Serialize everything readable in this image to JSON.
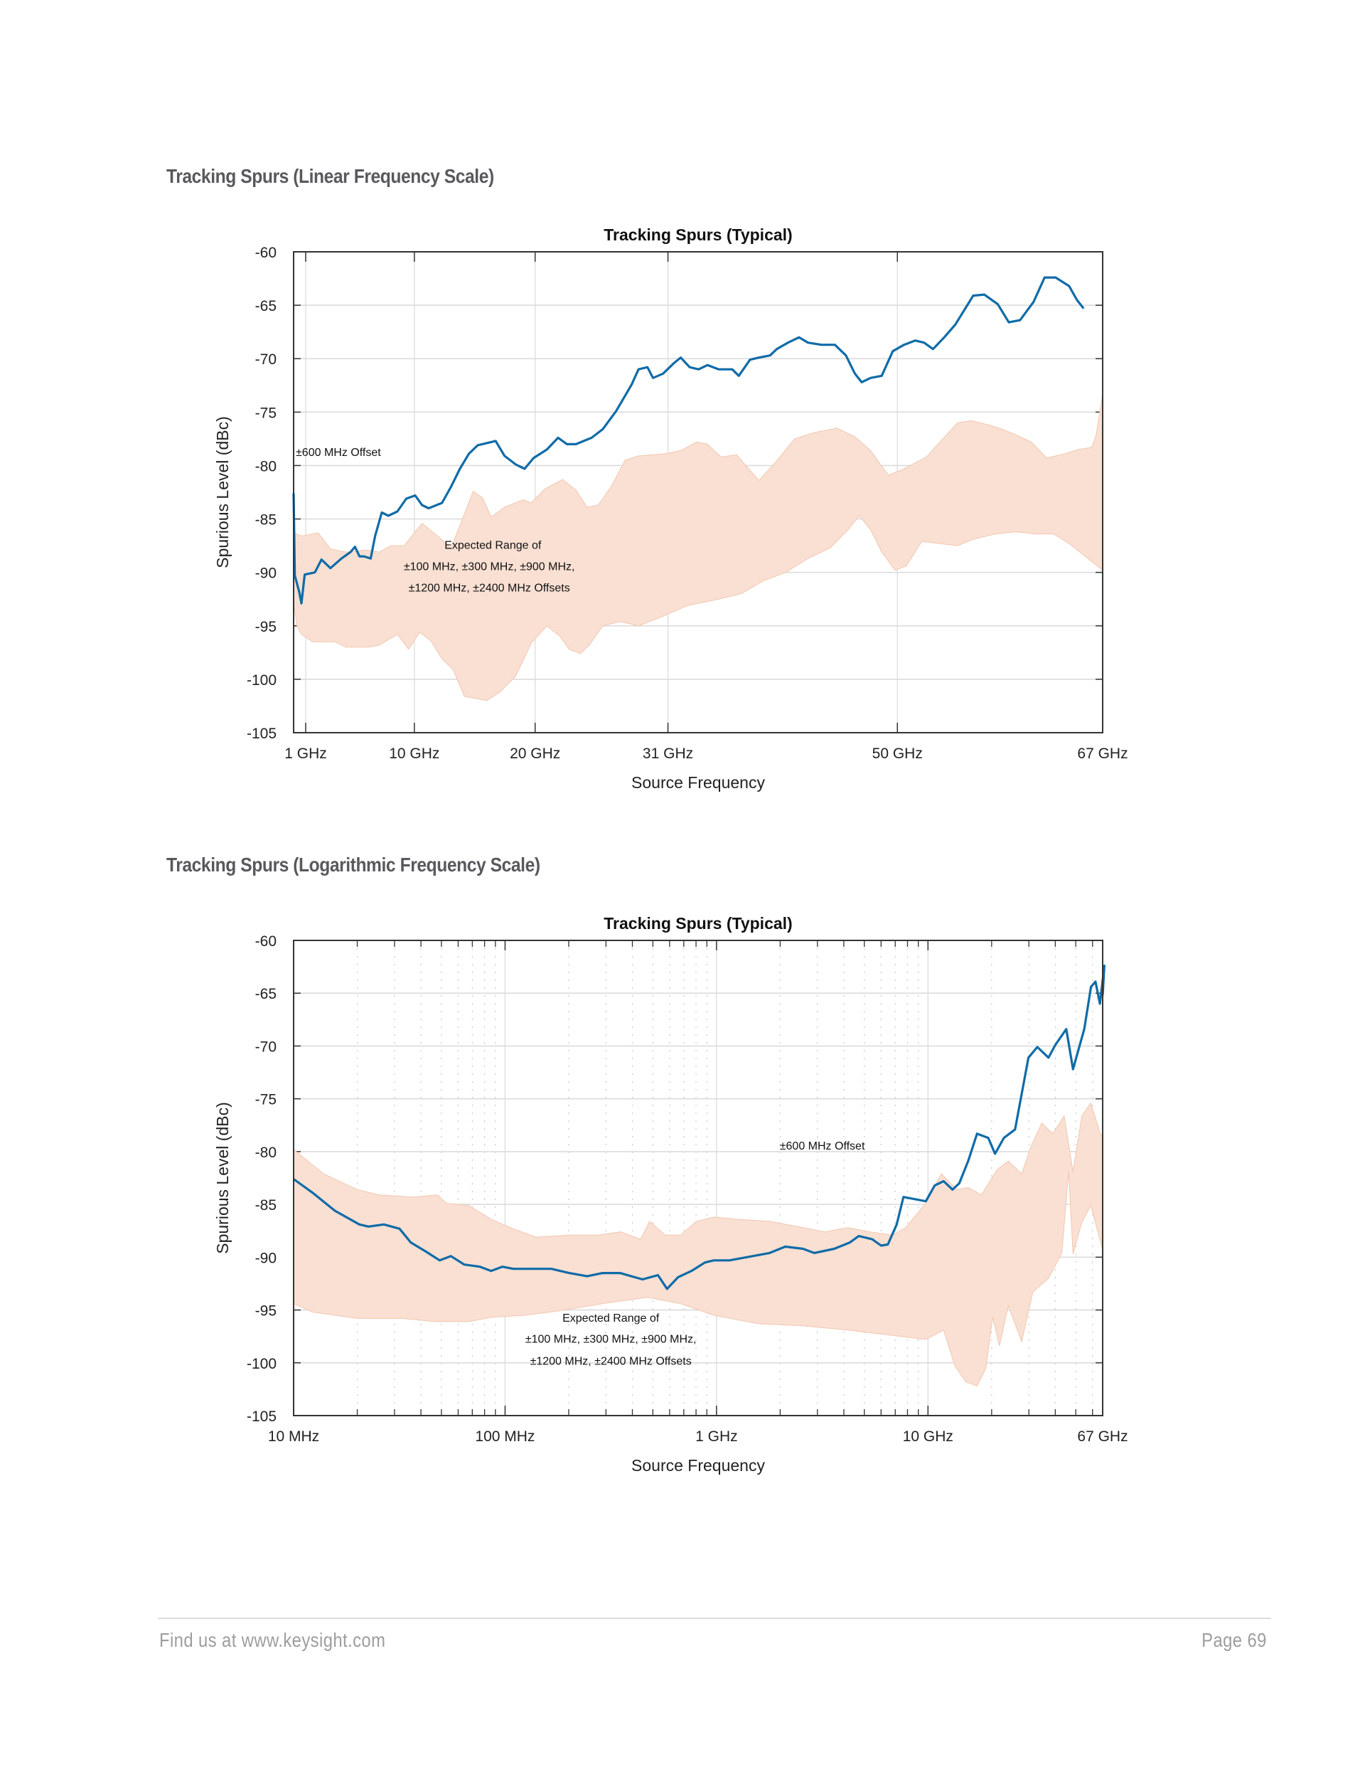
{
  "sections": [
    {
      "heading": "Tracking Spurs (Linear Frequency Scale)"
    },
    {
      "heading": "Tracking Spurs (Logarithmic Frequency Scale)"
    }
  ],
  "footer": {
    "left": "Find us at www.keysight.com",
    "right": "Page 69"
  },
  "colors": {
    "line": "#0f6ba8",
    "band": "#f9e0d3",
    "band_edge": "#f2c7b0",
    "grid": "#dcdcdc",
    "axis": "#333333"
  },
  "chart_data": [
    {
      "type": "line",
      "title": "Tracking Spurs (Typical)",
      "xlabel": "Source Frequency",
      "ylabel": "Spurious Level (dBc)",
      "xscale": "linear",
      "xlim": [
        0,
        67
      ],
      "ylim": [
        -105,
        -60
      ],
      "grid": true,
      "xticks": [
        1,
        10,
        20,
        31,
        50,
        67
      ],
      "xtick_labels": [
        "1 GHz",
        "10 GHz",
        "20 GHz",
        "31 GHz",
        "50 GHz",
        "67 GHz"
      ],
      "yticks": [
        -60,
        -65,
        -70,
        -75,
        -80,
        -85,
        -90,
        -95,
        -100,
        -105
      ],
      "ytick_labels": [
        "-60",
        "-65",
        "-70",
        "-75",
        "-80",
        "-85",
        "-90",
        "-95",
        "-100",
        "-105"
      ],
      "annotations": [
        {
          "text": "±600 MHz Offset",
          "x": 3.7,
          "y": -79.1
        },
        {
          "text": "Expected Range of",
          "x": 16.5,
          "y": -87.8
        },
        {
          "text": "±100 MHz, ±300 MHz, ±900 MHz,",
          "x": 16.2,
          "y": -89.8
        },
        {
          "text": "±1200 MHz, ±2400 MHz Offsets",
          "x": 16.2,
          "y": -91.8
        }
      ],
      "series": [
        {
          "name": "±600 MHz Offset",
          "kind": "line",
          "x": [
            0,
            0.1,
            0.46,
            0.65,
            0.92,
            1.76,
            2.31,
            3.05,
            3.97,
            4.71,
            5.08,
            5.45,
            5.82,
            6.38,
            6.75,
            7.3,
            7.85,
            8.59,
            9.33,
            10.07,
            10.63,
            11.18,
            12.29,
            13.03,
            13.77,
            14.51,
            15.25,
            16.73,
            17.47,
            18.39,
            19.13,
            19.87,
            20.98,
            21.9,
            22.64,
            23.38,
            24.68,
            25.6,
            26.71,
            28.0,
            28.56,
            29.3,
            29.76,
            30.59,
            31.51,
            32.06,
            32.8,
            33.54,
            34.28,
            35.21,
            36.32,
            36.87,
            37.79,
            38.53,
            39.46,
            40.01,
            40.94,
            41.86,
            42.6,
            43.71,
            44.82,
            45.74,
            46.48,
            47.04,
            47.78,
            48.7,
            49.62,
            50.55,
            51.47,
            52.21,
            52.95,
            53.88,
            54.8,
            56.28,
            57.2,
            58.31,
            59.23,
            60.16,
            61.27,
            62.19,
            63.11,
            64.22,
            64.87,
            65.42
          ],
          "y": [
            -82.6,
            -90.3,
            -91.8,
            -92.9,
            -90.2,
            -90.0,
            -88.8,
            -89.6,
            -88.7,
            -88.1,
            -87.6,
            -88.5,
            -88.5,
            -88.7,
            -86.6,
            -84.4,
            -84.7,
            -84.3,
            -83.1,
            -82.8,
            -83.7,
            -84.0,
            -83.5,
            -82.0,
            -80.3,
            -78.9,
            -78.1,
            -77.7,
            -79.1,
            -79.9,
            -80.3,
            -79.3,
            -78.5,
            -77.4,
            -78.0,
            -78.0,
            -77.4,
            -76.6,
            -74.9,
            -72.4,
            -71.0,
            -70.8,
            -71.8,
            -71.4,
            -70.4,
            -69.9,
            -70.8,
            -71.0,
            -70.6,
            -71.0,
            -71.0,
            -71.6,
            -70.1,
            -69.9,
            -69.7,
            -69.1,
            -68.5,
            -68.0,
            -68.5,
            -68.7,
            -68.7,
            -69.7,
            -71.4,
            -72.2,
            -71.8,
            -71.6,
            -69.3,
            -68.7,
            -68.3,
            -68.5,
            -69.1,
            -68.0,
            -66.8,
            -64.1,
            -64.0,
            -64.9,
            -66.6,
            -66.4,
            -64.7,
            -62.4,
            -62.4,
            -63.2,
            -64.5,
            -65.3
          ]
        },
        {
          "name": "Expected Range of ±100 MHz, ±300 MHz, ±900 MHz, ±1200 MHz, ±2400 MHz Offsets",
          "kind": "band",
          "upper": {
            "x": [
              0,
              0.65,
              2.03,
              3.05,
              4.34,
              6.01,
              7.12,
              8.04,
              9.15,
              10.63,
              11.92,
              13.03,
              13.77,
              14.88,
              15.62,
              16.36,
              17.47,
              19.0,
              19.69,
              20.79,
              22.27,
              23.38,
              24.3,
              25.23,
              26.34,
              27.45,
              28.56,
              30.77,
              32.06,
              33.36,
              34.28,
              35.39,
              36.69,
              38.53,
              39.83,
              41.49,
              43.16,
              45.0,
              46.48,
              47.78,
              49.25,
              50.55,
              52.4,
              53.51,
              54.99,
              56.1,
              57.58,
              58.68,
              59.79,
              61.09,
              62.38,
              63.86,
              64.97,
              66.08,
              66.45,
              67.0
            ],
            "y": [
              -86.3,
              -86.6,
              -86.3,
              -87.8,
              -88.1,
              -87.9,
              -88.1,
              -87.5,
              -87.5,
              -85.4,
              -86.6,
              -87.7,
              -85.6,
              -82.4,
              -83.0,
              -84.8,
              -83.9,
              -83.2,
              -83.5,
              -82.2,
              -81.3,
              -82.3,
              -83.9,
              -83.7,
              -81.9,
              -79.5,
              -79.1,
              -78.9,
              -78.6,
              -77.8,
              -78.0,
              -79.2,
              -79.0,
              -81.4,
              -79.8,
              -77.5,
              -76.9,
              -76.5,
              -77.3,
              -78.6,
              -80.9,
              -80.3,
              -79.2,
              -77.8,
              -76.0,
              -75.8,
              -76.2,
              -76.6,
              -77.1,
              -77.8,
              -79.3,
              -78.9,
              -78.5,
              -78.3,
              -77.2,
              -73.3
            ]
          },
          "lower": {
            "x": [
              0,
              0.28,
              0.65,
              1.57,
              3.42,
              4.34,
              6.19,
              7.12,
              8.59,
              9.52,
              10.44,
              11.36,
              12.29,
              13.21,
              14.14,
              15.99,
              17.1,
              18.39,
              19.69,
              20.98,
              22.08,
              22.82,
              23.75,
              24.49,
              25.6,
              27.08,
              28.56,
              30.59,
              32.62,
              35.21,
              37.05,
              38.9,
              40.75,
              42.6,
              44.45,
              45.92,
              46.85,
              47.78,
              48.7,
              49.81,
              50.73,
              52.03,
              53.51,
              54.99,
              56.28,
              58.13,
              59.79,
              61.46,
              62.93,
              64.22,
              67.0
            ],
            "y": [
              -92.9,
              -95.0,
              -95.8,
              -96.5,
              -96.5,
              -97.0,
              -97.0,
              -96.8,
              -95.8,
              -97.2,
              -95.6,
              -96.4,
              -98.1,
              -99.1,
              -101.6,
              -102.0,
              -101.2,
              -99.7,
              -96.6,
              -95.0,
              -96.0,
              -97.2,
              -97.6,
              -96.8,
              -95.0,
              -94.6,
              -95.0,
              -94.1,
              -93.1,
              -92.5,
              -92.0,
              -90.8,
              -90.0,
              -88.7,
              -87.7,
              -86.0,
              -84.7,
              -86.0,
              -88.1,
              -89.8,
              -89.4,
              -87.1,
              -87.3,
              -87.5,
              -86.9,
              -86.4,
              -86.2,
              -86.4,
              -86.4,
              -87.3,
              -89.8
            ]
          }
        }
      ]
    },
    {
      "type": "line",
      "title": "Tracking Spurs (Typical)",
      "xlabel": "Source Frequency",
      "ylabel": "Spurious Level (dBc)",
      "xscale": "log",
      "xlim_hz": [
        10000000,
        67000000000
      ],
      "ylim": [
        -105,
        -60
      ],
      "grid": true,
      "minor_grid": true,
      "xticks_hz": [
        10000000,
        100000000,
        1000000000,
        10000000000,
        67000000000
      ],
      "xtick_labels": [
        "10 MHz",
        "100 MHz",
        "1 GHz",
        "10 GHz",
        "67 GHz"
      ],
      "yticks": [
        -60,
        -65,
        -70,
        -75,
        -80,
        -85,
        -90,
        -95,
        -100,
        -105
      ],
      "ytick_labels": [
        "-60",
        "-65",
        "-70",
        "-75",
        "-80",
        "-85",
        "-90",
        "-95",
        "-100",
        "-105"
      ],
      "annotations": [
        {
          "text": "±600 MHz Offset",
          "log10_x": 9.5,
          "y": -79.8
        },
        {
          "text": "Expected Range of",
          "log10_x": 8.5,
          "y": -96.1
        },
        {
          "text": "±100 MHz, ±300 MHz, ±900 MHz,",
          "log10_x": 8.5,
          "y": -98.1
        },
        {
          "text": "±1200 MHz, ±2400 MHz Offsets",
          "log10_x": 8.5,
          "y": -100.2
        }
      ],
      "series": [
        {
          "name": "±600 MHz Offset",
          "kind": "line",
          "log10_x": [
            7.0,
            7.09,
            7.195,
            7.311,
            7.354,
            7.427,
            7.501,
            7.554,
            7.628,
            7.691,
            7.744,
            7.807,
            7.881,
            7.934,
            7.987,
            8.039,
            8.124,
            8.219,
            8.303,
            8.388,
            8.462,
            8.544,
            8.597,
            8.65,
            8.723,
            8.766,
            8.818,
            8.882,
            8.945,
            8.987,
            9.061,
            9.251,
            9.325,
            9.409,
            9.462,
            9.557,
            9.631,
            9.673,
            9.736,
            9.778,
            9.81,
            9.852,
            9.884,
            9.937,
            9.99,
            10.032,
            10.074,
            10.116,
            10.148,
            10.19,
            10.232,
            10.285,
            10.317,
            10.359,
            10.412,
            10.475,
            10.517,
            10.57,
            10.602,
            10.654,
            10.686,
            10.739,
            10.771,
            10.792,
            10.813,
            10.834,
            10.826
          ],
          "y": [
            -82.6,
            -83.9,
            -85.6,
            -86.9,
            -87.1,
            -86.9,
            -87.3,
            -88.6,
            -89.5,
            -90.3,
            -89.9,
            -90.7,
            -90.9,
            -91.3,
            -90.9,
            -91.1,
            -91.1,
            -91.1,
            -91.5,
            -91.8,
            -91.5,
            -91.5,
            -91.8,
            -92.1,
            -91.7,
            -93.0,
            -91.9,
            -91.3,
            -90.5,
            -90.3,
            -90.3,
            -89.6,
            -89.0,
            -89.2,
            -89.6,
            -89.2,
            -88.6,
            -88.0,
            -88.3,
            -88.9,
            -88.8,
            -86.9,
            -84.3,
            -84.5,
            -84.7,
            -83.2,
            -82.8,
            -83.6,
            -83.0,
            -80.9,
            -78.3,
            -78.7,
            -80.2,
            -78.7,
            -77.9,
            -71.1,
            -70.1,
            -71.1,
            -69.9,
            -68.4,
            -72.2,
            -68.4,
            -64.4,
            -63.9,
            -66.0,
            -62.4,
            -65.2
          ]
        },
        {
          "name": "Expected Range of ±100 MHz, ±300 MHz, ±900 MHz, ±1200 MHz, ±2400 MHz Offsets",
          "kind": "band",
          "upper": {
            "log10_x": [
              7.0,
              7.142,
              7.301,
              7.406,
              7.565,
              7.681,
              7.723,
              7.828,
              7.934,
              8.039,
              8.145,
              8.303,
              8.44,
              8.546,
              8.641,
              8.683,
              8.757,
              8.83,
              8.904,
              8.987,
              9.092,
              9.251,
              9.356,
              9.514,
              9.62,
              9.726,
              9.831,
              9.894,
              9.989,
              10.063,
              10.137,
              10.19,
              10.253,
              10.327,
              10.38,
              10.443,
              10.485,
              10.538,
              10.591,
              10.644,
              10.686,
              10.728,
              10.77,
              10.812,
              10.826
            ],
            "y": [
              -79.8,
              -82.1,
              -83.6,
              -84.1,
              -84.3,
              -84.1,
              -84.9,
              -85.1,
              -86.4,
              -87.3,
              -88.1,
              -87.9,
              -87.9,
              -87.6,
              -88.3,
              -86.6,
              -87.9,
              -87.9,
              -86.6,
              -86.2,
              -86.4,
              -86.6,
              -87.0,
              -87.6,
              -87.2,
              -87.6,
              -87.9,
              -87.2,
              -84.9,
              -82.1,
              -83.6,
              -83.4,
              -84.1,
              -81.7,
              -80.9,
              -82.1,
              -79.6,
              -77.3,
              -78.3,
              -76.6,
              -81.9,
              -76.6,
              -75.4,
              -78.1,
              -78.7
            ]
          },
          "lower": {
            "log10_x": [
              7.0,
              7.09,
              7.301,
              7.512,
              7.67,
              7.828,
              7.934,
              8.092,
              8.251,
              8.462,
              8.673,
              8.83,
              8.987,
              9.198,
              9.409,
              9.62,
              9.831,
              9.989,
              10.074,
              10.127,
              10.179,
              10.232,
              10.274,
              10.306,
              10.338,
              10.38,
              10.443,
              10.496,
              10.57,
              10.633,
              10.665,
              10.686,
              10.728,
              10.77,
              10.826
            ],
            "y": [
              -94.4,
              -95.2,
              -95.8,
              -95.8,
              -96.1,
              -96.1,
              -95.7,
              -95.5,
              -95.1,
              -94.4,
              -93.8,
              -94.4,
              -95.5,
              -96.3,
              -96.5,
              -96.9,
              -97.4,
              -97.8,
              -96.9,
              -100.3,
              -101.8,
              -102.2,
              -100.5,
              -95.7,
              -98.4,
              -94.6,
              -98.0,
              -93.3,
              -92.0,
              -89.6,
              -81.9,
              -89.7,
              -86.7,
              -85.1,
              -89.3
            ]
          }
        }
      ]
    }
  ]
}
